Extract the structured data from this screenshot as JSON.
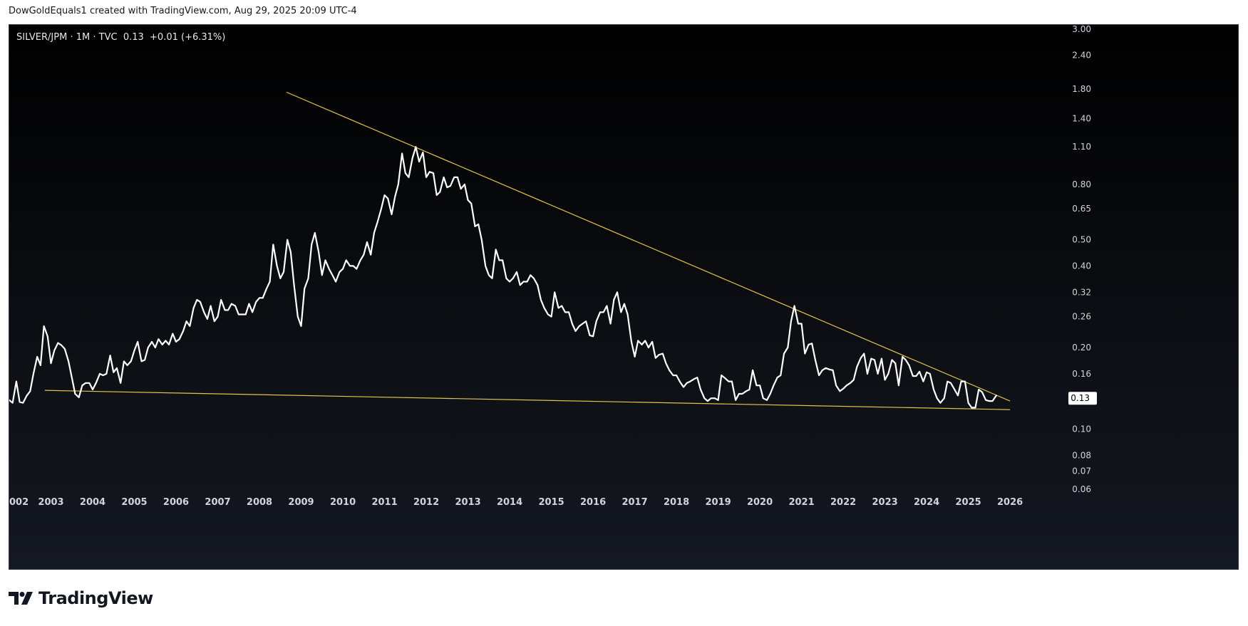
{
  "header": {
    "attribution": "DowGoldEquals1 created with TradingView.com, Aug 29, 2025 20:09 UTC-4"
  },
  "legend": {
    "symbol": "SILVER/JPM",
    "interval": "1M",
    "source": "TVC",
    "value": "0.13",
    "change": "+0.01",
    "change_pct": "(+6.31%)"
  },
  "footer": {
    "brand": "TradingView",
    "logo_icon": "tradingview-logo-icon"
  },
  "colors": {
    "price_line": "#ffffff",
    "trend_line": "#e3c44a",
    "axis_text": "#d1d4dc",
    "price_tag_bg": "#ffffff",
    "price_tag_text": "#000000"
  },
  "chart_data": {
    "type": "line",
    "symbol": "SILVER/JPM",
    "scale": "log",
    "ylim": [
      0.06,
      3.1
    ],
    "xlim": [
      2002.0,
      2027.4
    ],
    "y_ticks": [
      "3.00",
      "2.40",
      "1.80",
      "1.40",
      "1.10",
      "0.80",
      "0.65",
      "0.50",
      "0.40",
      "0.32",
      "0.26",
      "0.20",
      "0.16",
      "0.13",
      "0.10",
      "0.08",
      "0.07",
      "0.06"
    ],
    "x_ticks": [
      "002",
      "2003",
      "2004",
      "2005",
      "2006",
      "2007",
      "2008",
      "2009",
      "2010",
      "2011",
      "2012",
      "2013",
      "2014",
      "2015",
      "2016",
      "2017",
      "2018",
      "2019",
      "2020",
      "2021",
      "2022",
      "2023",
      "2024",
      "2025",
      "2026"
    ],
    "last_value_label": "0.13",
    "series": [
      {
        "points": [
          [
            2002.0,
            0.128
          ],
          [
            2002.08,
            0.125
          ],
          [
            2002.17,
            0.15
          ],
          [
            2002.25,
            0.126
          ],
          [
            2002.33,
            0.125
          ],
          [
            2002.42,
            0.133
          ],
          [
            2002.5,
            0.138
          ],
          [
            2002.58,
            0.16
          ],
          [
            2002.67,
            0.185
          ],
          [
            2002.75,
            0.172
          ],
          [
            2002.83,
            0.24
          ],
          [
            2002.92,
            0.22
          ],
          [
            2003.0,
            0.175
          ],
          [
            2003.08,
            0.195
          ],
          [
            2003.17,
            0.208
          ],
          [
            2003.25,
            0.204
          ],
          [
            2003.33,
            0.198
          ],
          [
            2003.42,
            0.178
          ],
          [
            2003.5,
            0.155
          ],
          [
            2003.58,
            0.135
          ],
          [
            2003.67,
            0.131
          ],
          [
            2003.75,
            0.145
          ],
          [
            2003.83,
            0.148
          ],
          [
            2003.92,
            0.148
          ],
          [
            2004.0,
            0.14
          ],
          [
            2004.08,
            0.148
          ],
          [
            2004.17,
            0.16
          ],
          [
            2004.25,
            0.158
          ],
          [
            2004.33,
            0.16
          ],
          [
            2004.42,
            0.187
          ],
          [
            2004.5,
            0.162
          ],
          [
            2004.58,
            0.168
          ],
          [
            2004.67,
            0.148
          ],
          [
            2004.75,
            0.178
          ],
          [
            2004.83,
            0.172
          ],
          [
            2004.92,
            0.178
          ],
          [
            2005.0,
            0.195
          ],
          [
            2005.08,
            0.21
          ],
          [
            2005.17,
            0.178
          ],
          [
            2005.25,
            0.18
          ],
          [
            2005.33,
            0.2
          ],
          [
            2005.42,
            0.21
          ],
          [
            2005.5,
            0.2
          ],
          [
            2005.58,
            0.215
          ],
          [
            2005.67,
            0.205
          ],
          [
            2005.75,
            0.212
          ],
          [
            2005.83,
            0.205
          ],
          [
            2005.92,
            0.225
          ],
          [
            2006.0,
            0.21
          ],
          [
            2006.08,
            0.215
          ],
          [
            2006.17,
            0.23
          ],
          [
            2006.25,
            0.25
          ],
          [
            2006.33,
            0.24
          ],
          [
            2006.42,
            0.28
          ],
          [
            2006.5,
            0.3
          ],
          [
            2006.58,
            0.295
          ],
          [
            2006.67,
            0.27
          ],
          [
            2006.75,
            0.255
          ],
          [
            2006.83,
            0.285
          ],
          [
            2006.92,
            0.25
          ],
          [
            2007.0,
            0.26
          ],
          [
            2007.08,
            0.3
          ],
          [
            2007.17,
            0.275
          ],
          [
            2007.25,
            0.275
          ],
          [
            2007.33,
            0.29
          ],
          [
            2007.42,
            0.285
          ],
          [
            2007.5,
            0.265
          ],
          [
            2007.58,
            0.265
          ],
          [
            2007.67,
            0.265
          ],
          [
            2007.75,
            0.29
          ],
          [
            2007.83,
            0.27
          ],
          [
            2007.92,
            0.295
          ],
          [
            2008.0,
            0.305
          ],
          [
            2008.08,
            0.305
          ],
          [
            2008.17,
            0.33
          ],
          [
            2008.25,
            0.35
          ],
          [
            2008.33,
            0.48
          ],
          [
            2008.42,
            0.4
          ],
          [
            2008.5,
            0.36
          ],
          [
            2008.58,
            0.38
          ],
          [
            2008.67,
            0.5
          ],
          [
            2008.75,
            0.45
          ],
          [
            2008.83,
            0.34
          ],
          [
            2008.92,
            0.26
          ],
          [
            2009.0,
            0.24
          ],
          [
            2009.08,
            0.33
          ],
          [
            2009.17,
            0.36
          ],
          [
            2009.25,
            0.48
          ],
          [
            2009.33,
            0.53
          ],
          [
            2009.42,
            0.45
          ],
          [
            2009.5,
            0.37
          ],
          [
            2009.58,
            0.42
          ],
          [
            2009.67,
            0.39
          ],
          [
            2009.75,
            0.37
          ],
          [
            2009.83,
            0.35
          ],
          [
            2009.92,
            0.38
          ],
          [
            2010.0,
            0.39
          ],
          [
            2010.08,
            0.42
          ],
          [
            2010.17,
            0.4
          ],
          [
            2010.25,
            0.4
          ],
          [
            2010.33,
            0.39
          ],
          [
            2010.42,
            0.42
          ],
          [
            2010.5,
            0.44
          ],
          [
            2010.58,
            0.49
          ],
          [
            2010.67,
            0.44
          ],
          [
            2010.75,
            0.53
          ],
          [
            2010.83,
            0.58
          ],
          [
            2010.92,
            0.65
          ],
          [
            2011.0,
            0.73
          ],
          [
            2011.08,
            0.71
          ],
          [
            2011.17,
            0.62
          ],
          [
            2011.25,
            0.72
          ],
          [
            2011.33,
            0.8
          ],
          [
            2011.42,
            1.04
          ],
          [
            2011.5,
            0.88
          ],
          [
            2011.58,
            0.85
          ],
          [
            2011.67,
            1.0
          ],
          [
            2011.75,
            1.1
          ],
          [
            2011.83,
            0.97
          ],
          [
            2011.92,
            1.05
          ],
          [
            2012.0,
            0.85
          ],
          [
            2012.08,
            0.89
          ],
          [
            2012.17,
            0.88
          ],
          [
            2012.25,
            0.73
          ],
          [
            2012.33,
            0.75
          ],
          [
            2012.42,
            0.85
          ],
          [
            2012.5,
            0.78
          ],
          [
            2012.58,
            0.79
          ],
          [
            2012.67,
            0.85
          ],
          [
            2012.75,
            0.85
          ],
          [
            2012.83,
            0.77
          ],
          [
            2012.92,
            0.8
          ],
          [
            2013.0,
            0.7
          ],
          [
            2013.08,
            0.68
          ],
          [
            2013.17,
            0.56
          ],
          [
            2013.25,
            0.57
          ],
          [
            2013.33,
            0.5
          ],
          [
            2013.42,
            0.4
          ],
          [
            2013.5,
            0.37
          ],
          [
            2013.58,
            0.36
          ],
          [
            2013.67,
            0.46
          ],
          [
            2013.75,
            0.42
          ],
          [
            2013.83,
            0.42
          ],
          [
            2013.92,
            0.36
          ],
          [
            2014.0,
            0.35
          ],
          [
            2014.08,
            0.36
          ],
          [
            2014.17,
            0.38
          ],
          [
            2014.25,
            0.34
          ],
          [
            2014.33,
            0.35
          ],
          [
            2014.42,
            0.35
          ],
          [
            2014.5,
            0.37
          ],
          [
            2014.58,
            0.36
          ],
          [
            2014.67,
            0.34
          ],
          [
            2014.75,
            0.3
          ],
          [
            2014.83,
            0.28
          ],
          [
            2014.92,
            0.265
          ],
          [
            2015.0,
            0.26
          ],
          [
            2015.08,
            0.32
          ],
          [
            2015.17,
            0.28
          ],
          [
            2015.25,
            0.285
          ],
          [
            2015.33,
            0.27
          ],
          [
            2015.42,
            0.27
          ],
          [
            2015.5,
            0.245
          ],
          [
            2015.58,
            0.23
          ],
          [
            2015.67,
            0.24
          ],
          [
            2015.75,
            0.245
          ],
          [
            2015.83,
            0.25
          ],
          [
            2015.92,
            0.222
          ],
          [
            2016.0,
            0.22
          ],
          [
            2016.08,
            0.25
          ],
          [
            2016.17,
            0.27
          ],
          [
            2016.25,
            0.27
          ],
          [
            2016.33,
            0.285
          ],
          [
            2016.42,
            0.245
          ],
          [
            2016.5,
            0.3
          ],
          [
            2016.58,
            0.32
          ],
          [
            2016.67,
            0.27
          ],
          [
            2016.75,
            0.29
          ],
          [
            2016.83,
            0.265
          ],
          [
            2016.92,
            0.21
          ],
          [
            2017.0,
            0.185
          ],
          [
            2017.08,
            0.212
          ],
          [
            2017.17,
            0.205
          ],
          [
            2017.25,
            0.212
          ],
          [
            2017.33,
            0.2
          ],
          [
            2017.42,
            0.21
          ],
          [
            2017.5,
            0.183
          ],
          [
            2017.58,
            0.188
          ],
          [
            2017.67,
            0.19
          ],
          [
            2017.75,
            0.175
          ],
          [
            2017.83,
            0.165
          ],
          [
            2017.92,
            0.158
          ],
          [
            2018.0,
            0.158
          ],
          [
            2018.08,
            0.15
          ],
          [
            2018.17,
            0.143
          ],
          [
            2018.25,
            0.148
          ],
          [
            2018.33,
            0.15
          ],
          [
            2018.42,
            0.153
          ],
          [
            2018.5,
            0.155
          ],
          [
            2018.58,
            0.14
          ],
          [
            2018.67,
            0.13
          ],
          [
            2018.75,
            0.127
          ],
          [
            2018.83,
            0.13
          ],
          [
            2018.92,
            0.13
          ],
          [
            2019.0,
            0.128
          ],
          [
            2019.08,
            0.158
          ],
          [
            2019.17,
            0.154
          ],
          [
            2019.25,
            0.15
          ],
          [
            2019.33,
            0.15
          ],
          [
            2019.42,
            0.128
          ],
          [
            2019.5,
            0.135
          ],
          [
            2019.58,
            0.135
          ],
          [
            2019.67,
            0.138
          ],
          [
            2019.75,
            0.14
          ],
          [
            2019.83,
            0.165
          ],
          [
            2019.92,
            0.145
          ],
          [
            2020.0,
            0.145
          ],
          [
            2020.08,
            0.13
          ],
          [
            2020.17,
            0.128
          ],
          [
            2020.25,
            0.135
          ],
          [
            2020.33,
            0.145
          ],
          [
            2020.42,
            0.155
          ],
          [
            2020.5,
            0.158
          ],
          [
            2020.58,
            0.19
          ],
          [
            2020.67,
            0.2
          ],
          [
            2020.75,
            0.25
          ],
          [
            2020.83,
            0.285
          ],
          [
            2020.92,
            0.245
          ],
          [
            2021.0,
            0.245
          ],
          [
            2021.08,
            0.19
          ],
          [
            2021.17,
            0.205
          ],
          [
            2021.25,
            0.207
          ],
          [
            2021.33,
            0.18
          ],
          [
            2021.42,
            0.158
          ],
          [
            2021.5,
            0.165
          ],
          [
            2021.58,
            0.168
          ],
          [
            2021.67,
            0.166
          ],
          [
            2021.75,
            0.165
          ],
          [
            2021.83,
            0.145
          ],
          [
            2021.92,
            0.138
          ],
          [
            2022.0,
            0.141
          ],
          [
            2022.08,
            0.145
          ],
          [
            2022.17,
            0.148
          ],
          [
            2022.25,
            0.152
          ],
          [
            2022.33,
            0.17
          ],
          [
            2022.42,
            0.183
          ],
          [
            2022.5,
            0.19
          ],
          [
            2022.58,
            0.16
          ],
          [
            2022.67,
            0.182
          ],
          [
            2022.75,
            0.18
          ],
          [
            2022.83,
            0.16
          ],
          [
            2022.92,
            0.182
          ],
          [
            2023.0,
            0.152
          ],
          [
            2023.08,
            0.16
          ],
          [
            2023.17,
            0.18
          ],
          [
            2023.25,
            0.175
          ],
          [
            2023.33,
            0.145
          ],
          [
            2023.42,
            0.185
          ],
          [
            2023.5,
            0.18
          ],
          [
            2023.58,
            0.172
          ],
          [
            2023.67,
            0.157
          ],
          [
            2023.75,
            0.157
          ],
          [
            2023.83,
            0.163
          ],
          [
            2023.92,
            0.15
          ],
          [
            2024.0,
            0.162
          ],
          [
            2024.08,
            0.16
          ],
          [
            2024.17,
            0.14
          ],
          [
            2024.25,
            0.13
          ],
          [
            2024.33,
            0.125
          ],
          [
            2024.42,
            0.13
          ],
          [
            2024.5,
            0.15
          ],
          [
            2024.58,
            0.148
          ],
          [
            2024.67,
            0.14
          ],
          [
            2024.75,
            0.133
          ],
          [
            2024.83,
            0.15
          ],
          [
            2024.92,
            0.15
          ],
          [
            2025.0,
            0.125
          ],
          [
            2025.08,
            0.12
          ],
          [
            2025.17,
            0.12
          ],
          [
            2025.25,
            0.14
          ],
          [
            2025.33,
            0.137
          ],
          [
            2025.42,
            0.128
          ],
          [
            2025.5,
            0.127
          ],
          [
            2025.58,
            0.127
          ],
          [
            2025.67,
            0.133
          ]
        ]
      }
    ],
    "trendlines": [
      {
        "from": [
          2008.65,
          1.75
        ],
        "to": [
          2026.0,
          0.127
        ]
      },
      {
        "from": [
          2002.85,
          0.139
        ],
        "to": [
          2026.0,
          0.118
        ]
      }
    ]
  }
}
